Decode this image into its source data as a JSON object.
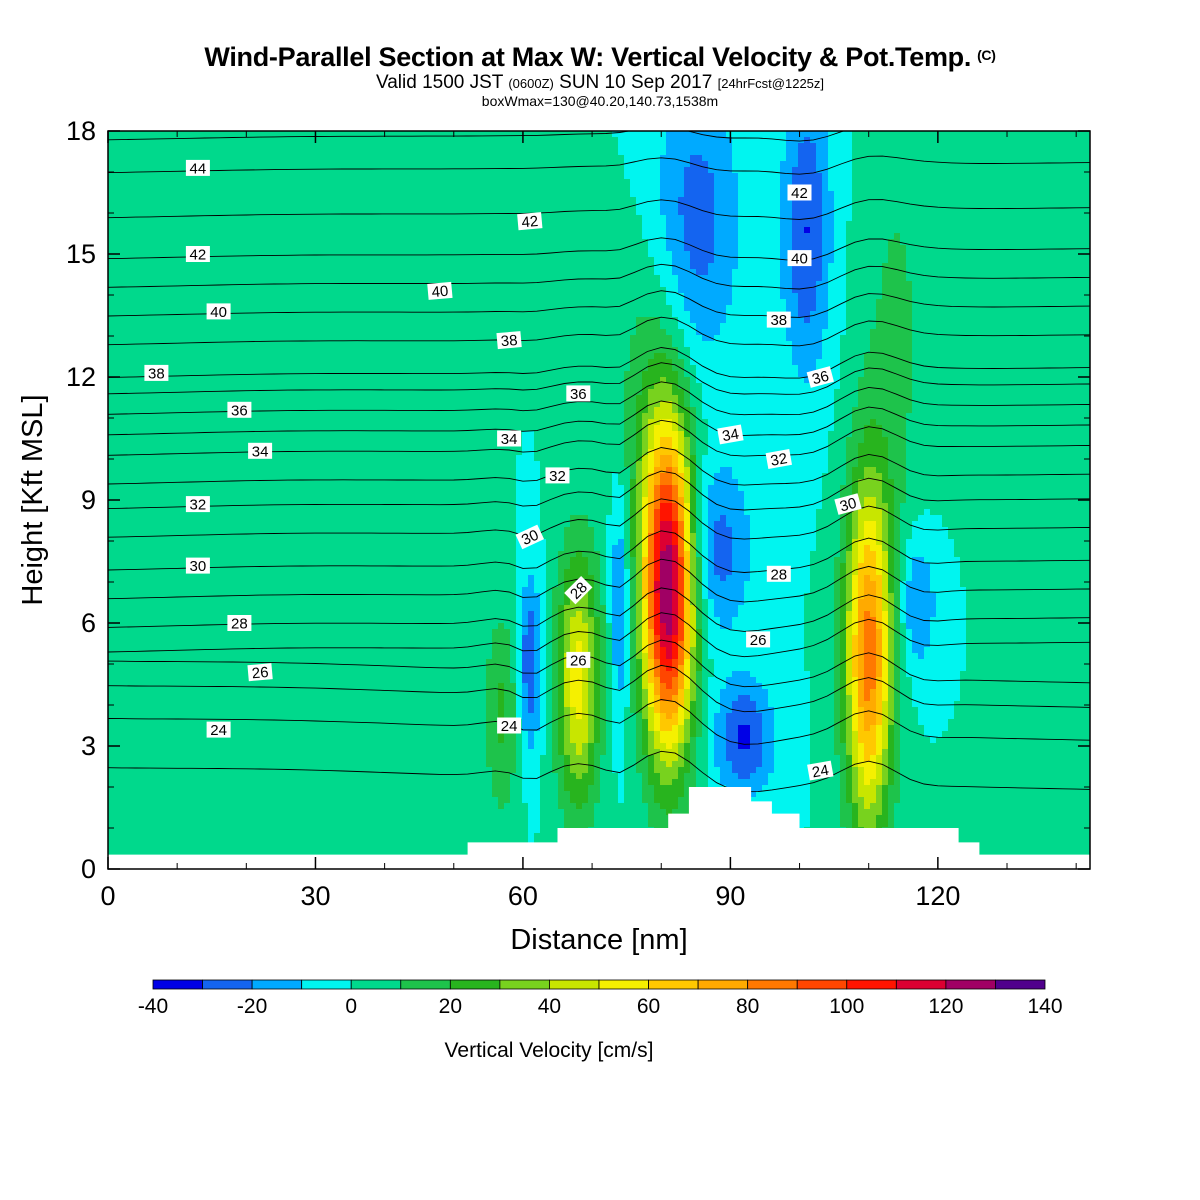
{
  "header": {
    "title": "Wind-Parallel Section at Max W: Vertical Velocity & Pot.Temp.",
    "title_tag": "(C)",
    "valid_prefix": "Valid 1500 JST",
    "valid_utc": "(0600Z)",
    "valid_date": "SUN 10 Sep 2017",
    "forecast_tag": "[24hrFcst@1225z]",
    "box_info": "boxWmax=130@40.20,140.73,1538m"
  },
  "chart_data": {
    "type": "heatmap",
    "xlabel": "Distance [nm]",
    "ylabel": "Height [Kft MSL]",
    "xlim": [
      0,
      142
    ],
    "ylim": [
      0,
      18
    ],
    "x_ticks": [
      0,
      30,
      60,
      90,
      120
    ],
    "y_ticks": [
      0,
      3,
      6,
      9,
      12,
      15,
      18
    ],
    "colorbar": {
      "label": "Vertical Velocity [cm/s]",
      "min": -40,
      "max": 140,
      "step": 10,
      "tick_labels": [
        "-40",
        "-20",
        "0",
        "20",
        "40",
        "60",
        "80",
        "100",
        "120",
        "140"
      ],
      "colors": [
        "#0000e6",
        "#1464f0",
        "#00aaff",
        "#00f5f0",
        "#00d98c",
        "#1ec34b",
        "#28b41e",
        "#78d21e",
        "#c8e600",
        "#f5f000",
        "#ffc800",
        "#ffaa00",
        "#ff7800",
        "#ff4600",
        "#ff1400",
        "#dc0032",
        "#a00064",
        "#50008c"
      ]
    },
    "background_value": 0,
    "velocity_cores": [
      {
        "x": 81,
        "z": 6.8,
        "peak": 130,
        "half_width": 2.6,
        "half_height": 2.8
      },
      {
        "x": 110,
        "z": 5.2,
        "peak": 85,
        "half_width": 2.4,
        "half_height": 3.0
      },
      {
        "x": 68,
        "z": 4.6,
        "peak": 55,
        "half_width": 2.2,
        "half_height": 2.2
      },
      {
        "x": 57,
        "z": 3.8,
        "peak": 22,
        "half_width": 1.8,
        "half_height": 1.8
      },
      {
        "x": 61,
        "z": 5.0,
        "peak": -30,
        "half_width": 1.2,
        "half_height": 1.5
      },
      {
        "x": 74,
        "z": 6.5,
        "peak": -25,
        "half_width": 1.0,
        "half_height": 2.0
      },
      {
        "x": 88,
        "z": 7.8,
        "peak": -25,
        "half_width": 3.5,
        "half_height": 1.5
      },
      {
        "x": 92,
        "z": 3.2,
        "peak": -32,
        "half_width": 3.0,
        "half_height": 1.0
      },
      {
        "x": 101,
        "z": 15.6,
        "peak": -30,
        "half_width": 2.5,
        "half_height": 2.5
      },
      {
        "x": 85,
        "z": 15.8,
        "peak": -25,
        "half_width": 4.5,
        "half_height": 2.5
      },
      {
        "x": 117,
        "z": 6.5,
        "peak": -22,
        "half_width": 2.0,
        "half_height": 1.2
      },
      {
        "x": 114,
        "z": 13.0,
        "peak": 12,
        "half_width": 3.5,
        "half_height": 4.0
      },
      {
        "x": 26,
        "z": 4.5,
        "peak": 10,
        "half_width": 10.0,
        "half_height": 5.0
      },
      {
        "x": 78,
        "z": 11.5,
        "peak": 14,
        "half_width": 3.5,
        "half_height": 3.0
      }
    ],
    "terrain_profile": [
      [
        0,
        0.35
      ],
      [
        52,
        0.35
      ],
      [
        52,
        0.65
      ],
      [
        65,
        0.65
      ],
      [
        65,
        1.0
      ],
      [
        81,
        1.0
      ],
      [
        81,
        1.35
      ],
      [
        84,
        1.35
      ],
      [
        84,
        2.0
      ],
      [
        93,
        2.0
      ],
      [
        93,
        1.65
      ],
      [
        96,
        1.65
      ],
      [
        96,
        1.35
      ],
      [
        100,
        1.35
      ],
      [
        100,
        1.0
      ],
      [
        123,
        1.0
      ],
      [
        123,
        0.65
      ],
      [
        126,
        0.65
      ],
      [
        126,
        0.35
      ],
      [
        142,
        0.35
      ]
    ],
    "theta_contours": [
      {
        "level": 22,
        "label": "",
        "z": 0.0,
        "label_x": 0
      },
      {
        "level": 23,
        "label": "",
        "z": 2.2,
        "label_x": 0
      },
      {
        "level": 24,
        "label": "24",
        "z": 3.4,
        "label_x": 16
      },
      {
        "level": 25,
        "label": "",
        "z": 4.2,
        "label_x": 0
      },
      {
        "level": 26,
        "label": "26",
        "z": 4.8,
        "label_x": 22
      },
      {
        "level": 27,
        "label": "",
        "z": 5.4,
        "label_x": 0
      },
      {
        "level": 28,
        "label": "28",
        "z": 6.0,
        "label_x": 19
      },
      {
        "level": 29,
        "label": "",
        "z": 6.7,
        "label_x": 0
      },
      {
        "level": 30,
        "label": "30",
        "z": 7.4,
        "label_x": 13
      },
      {
        "level": 31,
        "label": "",
        "z": 8.2,
        "label_x": 0
      },
      {
        "level": 32,
        "label": "32",
        "z": 8.9,
        "label_x": 13
      },
      {
        "level": 33,
        "label": "",
        "z": 9.5,
        "label_x": 0
      },
      {
        "level": 34,
        "label": "34",
        "z": 10.2,
        "label_x": 22
      },
      {
        "level": 35,
        "label": "",
        "z": 10.7,
        "label_x": 0
      },
      {
        "level": 36,
        "label": "36",
        "z": 11.2,
        "label_x": 19
      },
      {
        "level": 37,
        "label": "",
        "z": 11.7,
        "label_x": 0
      },
      {
        "level": 38,
        "label": "38",
        "z": 12.1,
        "label_x": 7
      },
      {
        "level": 39,
        "label": "",
        "z": 12.9,
        "label_x": 0
      },
      {
        "level": 40,
        "label": "40",
        "z": 13.6,
        "label_x": 16
      },
      {
        "level": 41,
        "label": "",
        "z": 14.3,
        "label_x": 0
      },
      {
        "level": 42,
        "label": "42",
        "z": 15.0,
        "label_x": 13
      },
      {
        "level": 43,
        "label": "",
        "z": 16.0,
        "label_x": 0
      },
      {
        "level": 44,
        "label": "44",
        "z": 17.1,
        "label_x": 13
      },
      {
        "level": 45,
        "label": "",
        "z": 17.9,
        "label_x": 0
      }
    ],
    "contour_labels": [
      {
        "text": "44",
        "x": 13,
        "z": 17.1,
        "angle": 0
      },
      {
        "text": "42",
        "x": 13,
        "z": 15.0,
        "angle": 0
      },
      {
        "text": "40",
        "x": 16,
        "z": 13.6,
        "angle": 0
      },
      {
        "text": "38",
        "x": 7,
        "z": 12.1,
        "angle": 0
      },
      {
        "text": "36",
        "x": 19,
        "z": 11.2,
        "angle": 0
      },
      {
        "text": "34",
        "x": 22,
        "z": 10.2,
        "angle": 0
      },
      {
        "text": "32",
        "x": 13,
        "z": 8.9,
        "angle": 0
      },
      {
        "text": "30",
        "x": 13,
        "z": 7.4,
        "angle": 0
      },
      {
        "text": "28",
        "x": 19,
        "z": 6.0,
        "angle": 0
      },
      {
        "text": "26",
        "x": 22,
        "z": 4.8,
        "angle": -5
      },
      {
        "text": "24",
        "x": 16,
        "z": 3.4,
        "angle": 0
      },
      {
        "text": "42",
        "x": 61,
        "z": 15.8,
        "angle": -5
      },
      {
        "text": "40",
        "x": 48,
        "z": 14.1,
        "angle": -5
      },
      {
        "text": "38",
        "x": 58,
        "z": 12.9,
        "angle": -5
      },
      {
        "text": "36",
        "x": 68,
        "z": 11.6,
        "angle": 0
      },
      {
        "text": "34",
        "x": 58,
        "z": 10.5,
        "angle": 0
      },
      {
        "text": "32",
        "x": 65,
        "z": 9.6,
        "angle": 0
      },
      {
        "text": "30",
        "x": 61,
        "z": 8.1,
        "angle": -25
      },
      {
        "text": "28",
        "x": 68,
        "z": 6.8,
        "angle": -45
      },
      {
        "text": "26",
        "x": 68,
        "z": 5.1,
        "angle": 0
      },
      {
        "text": "24",
        "x": 58,
        "z": 3.5,
        "angle": 0
      },
      {
        "text": "42",
        "x": 100,
        "z": 16.5,
        "angle": 0
      },
      {
        "text": "40",
        "x": 100,
        "z": 14.9,
        "angle": 0
      },
      {
        "text": "38",
        "x": 97,
        "z": 13.4,
        "angle": 0
      },
      {
        "text": "36",
        "x": 103,
        "z": 12.0,
        "angle": -15
      },
      {
        "text": "34",
        "x": 90,
        "z": 10.6,
        "angle": -10
      },
      {
        "text": "32",
        "x": 97,
        "z": 10.0,
        "angle": -10
      },
      {
        "text": "30",
        "x": 107,
        "z": 8.9,
        "angle": -15
      },
      {
        "text": "28",
        "x": 97,
        "z": 7.2,
        "angle": 0
      },
      {
        "text": "26",
        "x": 94,
        "z": 5.6,
        "angle": 0
      },
      {
        "text": "24",
        "x": 103,
        "z": 2.4,
        "angle": -10
      }
    ]
  }
}
